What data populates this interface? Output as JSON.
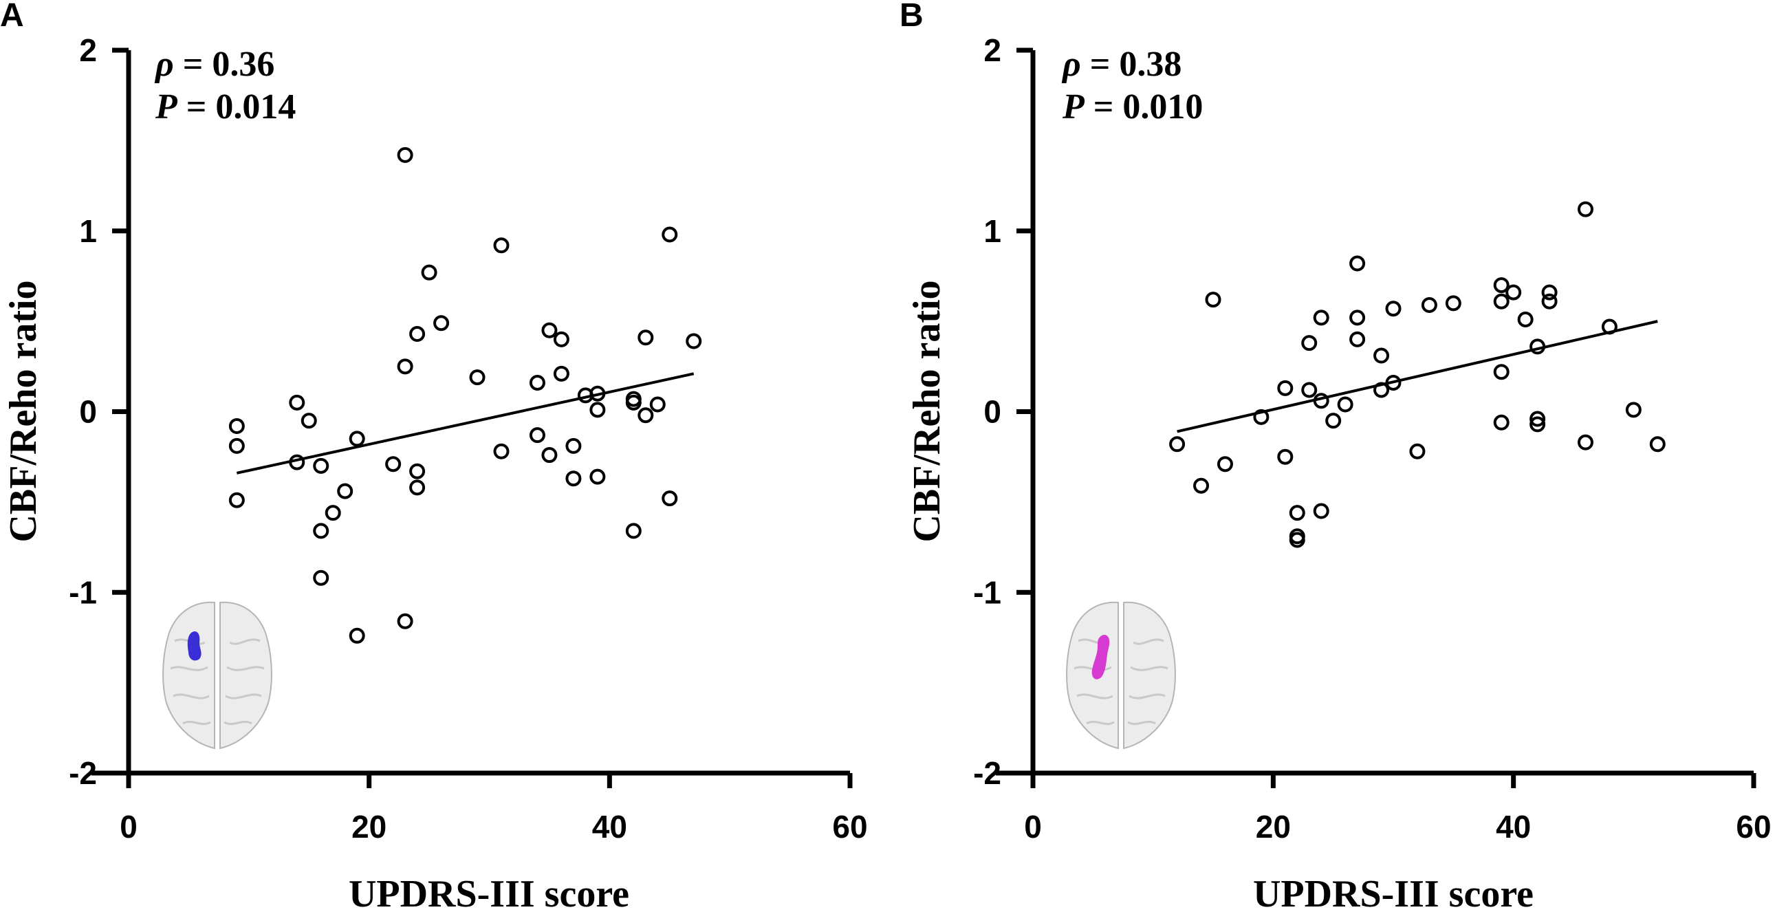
{
  "chart_data": [
    {
      "type": "scatter",
      "panel_label": "A",
      "xlabel": "UPDRS-III score",
      "ylabel": "CBF/Reho ratio",
      "xlim": [
        0,
        60
      ],
      "ylim": [
        -2,
        2
      ],
      "xticks": [
        "0",
        "20",
        "40",
        "60"
      ],
      "yticks": [
        "-2",
        "-1",
        "0",
        "1",
        "2"
      ],
      "stats": {
        "rho_symbol": "ρ",
        "rho_value": "= 0.36",
        "p_symbol": "P",
        "p_value": "= 0.014"
      },
      "fit_line": {
        "x": [
          9,
          47
        ],
        "y": [
          -0.34,
          0.21
        ]
      },
      "region_color": "#3a2fd6",
      "x": [
        9,
        9,
        9,
        14,
        14,
        15,
        16,
        16,
        16,
        17,
        18,
        19,
        19,
        22,
        23,
        23,
        23,
        24,
        24,
        24,
        25,
        26,
        29,
        31,
        31,
        34,
        34,
        35,
        35,
        36,
        36,
        37,
        37,
        38,
        39,
        39,
        39,
        42,
        42,
        42,
        43,
        43,
        44,
        45,
        45,
        47
      ],
      "y": [
        -0.08,
        -0.19,
        -0.49,
        0.05,
        -0.28,
        -0.05,
        -0.3,
        -0.66,
        -0.92,
        -0.56,
        -0.44,
        -0.15,
        -1.24,
        -0.29,
        1.42,
        0.25,
        -1.16,
        0.43,
        -0.33,
        -0.42,
        0.77,
        0.49,
        0.19,
        0.92,
        -0.22,
        0.16,
        -0.13,
        0.45,
        -0.24,
        0.4,
        0.21,
        -0.19,
        -0.37,
        0.09,
        0.1,
        0.01,
        -0.36,
        0.07,
        0.05,
        -0.66,
        0.41,
        -0.02,
        0.04,
        0.98,
        -0.48,
        0.39
      ]
    },
    {
      "type": "scatter",
      "panel_label": "B",
      "xlabel": "UPDRS-III score",
      "ylabel": "CBF/Reho ratio",
      "xlim": [
        0,
        60
      ],
      "ylim": [
        -2,
        2
      ],
      "xticks": [
        "0",
        "20",
        "40",
        "60"
      ],
      "yticks": [
        "-2",
        "-1",
        "0",
        "1",
        "2"
      ],
      "stats": {
        "rho_symbol": "ρ",
        "rho_value": "= 0.38",
        "p_symbol": "P",
        "p_value": "= 0.010"
      },
      "fit_line": {
        "x": [
          12,
          52
        ],
        "y": [
          -0.11,
          0.5
        ]
      },
      "region_color": "#d63ad0",
      "x": [
        12,
        14,
        15,
        16,
        19,
        21,
        21,
        22,
        22,
        22,
        23,
        23,
        24,
        24,
        24,
        25,
        26,
        27,
        27,
        27,
        29,
        29,
        30,
        30,
        32,
        33,
        35,
        39,
        39,
        39,
        39,
        40,
        41,
        42,
        42,
        42,
        43,
        43,
        46,
        46,
        48,
        50,
        52
      ],
      "y": [
        -0.18,
        -0.41,
        0.62,
        -0.29,
        -0.03,
        0.13,
        -0.25,
        -0.56,
        -0.69,
        -0.71,
        0.38,
        0.12,
        0.52,
        0.06,
        -0.55,
        -0.05,
        0.04,
        0.82,
        0.52,
        0.4,
        0.31,
        0.12,
        0.57,
        0.16,
        -0.22,
        0.59,
        0.6,
        0.7,
        0.61,
        0.22,
        -0.06,
        0.66,
        0.51,
        0.36,
        -0.04,
        -0.07,
        0.66,
        0.61,
        1.12,
        -0.17,
        0.47,
        0.01,
        -0.18
      ]
    }
  ]
}
